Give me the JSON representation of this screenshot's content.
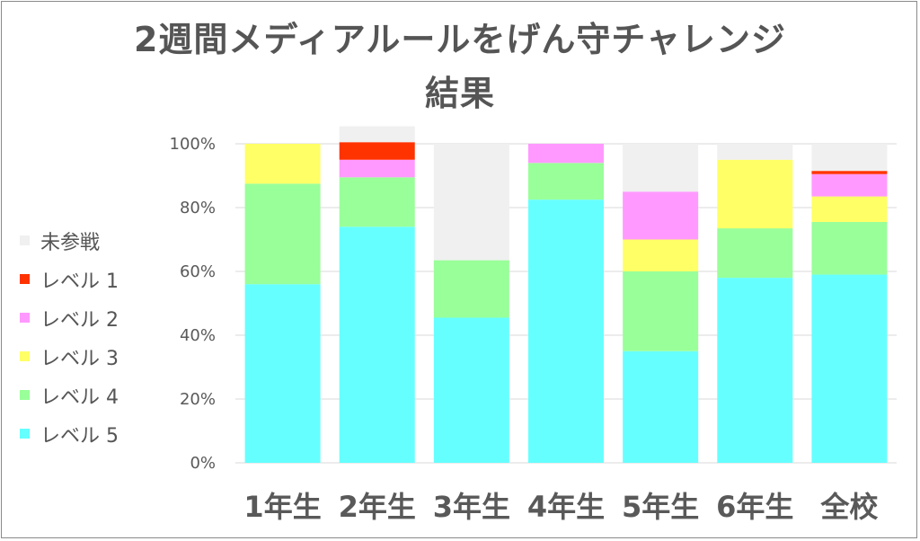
{
  "chart_data": {
    "type": "bar",
    "stacked": true,
    "title": "2週間メディアルールをげん守チャレンジ",
    "title_line2": "結果",
    "categories": [
      "1年生",
      "2年生",
      "3年生",
      "4年生",
      "5年生",
      "6年生",
      "全校"
    ],
    "ylim": [
      0,
      100
    ],
    "yticks": [
      "0%",
      "20%",
      "40%",
      "60%",
      "80%",
      "100%"
    ],
    "grid": true,
    "legend_position": "left",
    "series": [
      {
        "name": "レベル 5",
        "color": "#66FFFF",
        "values": [
          56,
          74,
          45.5,
          82.5,
          35,
          58,
          59
        ]
      },
      {
        "name": "レベル 4",
        "color": "#99FF99",
        "values": [
          31.5,
          15.5,
          18,
          11.5,
          25,
          15.5,
          16.5
        ]
      },
      {
        "name": "レベル 3",
        "color": "#FFFF66",
        "values": [
          12.5,
          0,
          0,
          0,
          10,
          21.5,
          8
        ]
      },
      {
        "name": "レベル 2",
        "color": "#FF99FF",
        "values": [
          0,
          5.5,
          0,
          6,
          15,
          0,
          7
        ]
      },
      {
        "name": "レベル 1",
        "color": "#FF3300",
        "values": [
          0,
          5.5,
          0,
          0,
          0,
          0,
          1
        ]
      },
      {
        "name": "未参戦",
        "color": "#F0F0F0",
        "values": [
          0,
          5,
          36.5,
          0,
          15,
          5,
          8.5
        ]
      }
    ],
    "legend_order": [
      "未参戦",
      "レベル 1",
      "レベル 2",
      "レベル 3",
      "レベル 4",
      "レベル 5"
    ]
  }
}
